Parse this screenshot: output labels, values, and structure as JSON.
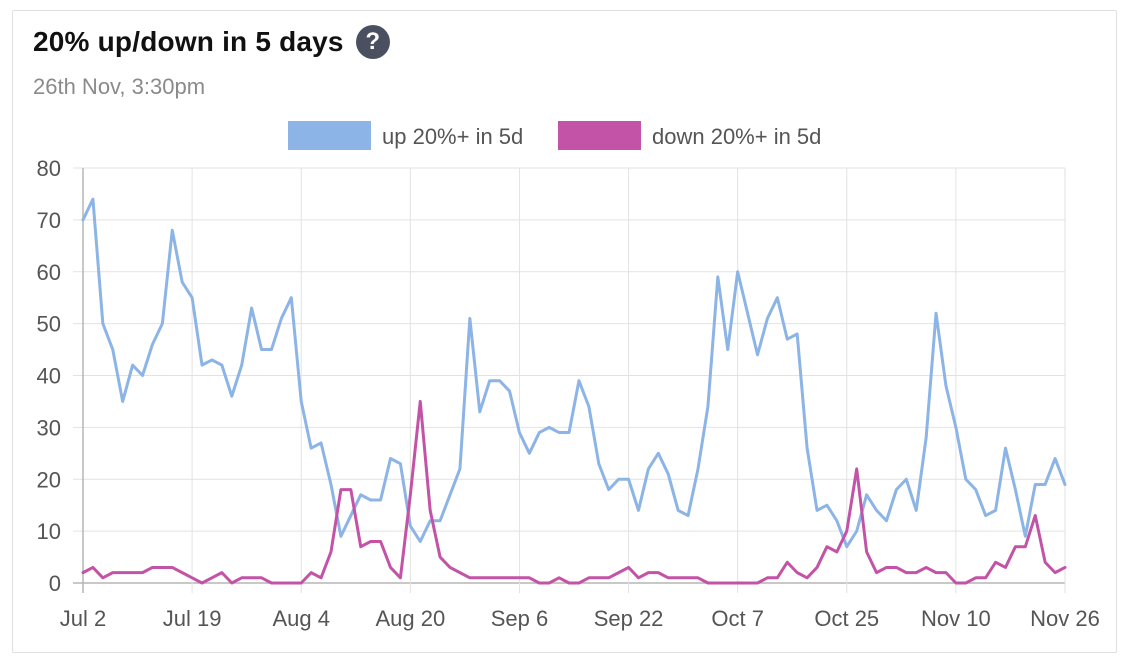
{
  "header": {
    "title": "20% up/down in 5 days",
    "subtitle": "26th Nov, 3:30pm",
    "help_icon": "question-circle-icon"
  },
  "colors": {
    "up": "#8cb4e6",
    "down": "#c353a6",
    "grid": "#e2e2e2",
    "axis": "#b5b5b5"
  },
  "chart_data": {
    "type": "line",
    "title": "20% up/down in 5 days",
    "xlabel": "",
    "ylabel": "",
    "ylim": [
      0,
      80
    ],
    "yticks": [
      0,
      10,
      20,
      30,
      40,
      50,
      60,
      70,
      80
    ],
    "xtick_labels": [
      "Jul 2",
      "Jul 19",
      "Aug 4",
      "Aug 20",
      "Sep 6",
      "Sep 22",
      "Oct 7",
      "Oct 25",
      "Nov 10",
      "Nov 26"
    ],
    "xtick_index": [
      0,
      11,
      22,
      33,
      44,
      55,
      66,
      77,
      88,
      99
    ],
    "grid": true,
    "legend_position": "top-center",
    "series": [
      {
        "name": "up 20%+ in 5d",
        "values": [
          70,
          74,
          50,
          45,
          35,
          42,
          40,
          46,
          50,
          68,
          58,
          55,
          42,
          43,
          42,
          36,
          42,
          53,
          45,
          45,
          51,
          55,
          35,
          26,
          27,
          19,
          9,
          13,
          17,
          16,
          16,
          24,
          23,
          11,
          8,
          12,
          12,
          17,
          22,
          51,
          33,
          39,
          39,
          37,
          29,
          25,
          29,
          30,
          29,
          29,
          39,
          34,
          23,
          18,
          20,
          20,
          14,
          22,
          25,
          21,
          14,
          13,
          22,
          34,
          59,
          45,
          60,
          52,
          44,
          51,
          55,
          47,
          48,
          26,
          14,
          15,
          12,
          7,
          10,
          17,
          14,
          12,
          18,
          20,
          14,
          28,
          52,
          38,
          30,
          20,
          18,
          13,
          14,
          26,
          18,
          9,
          19,
          19,
          24,
          19
        ]
      },
      {
        "name": "down 20%+ in 5d",
        "values": [
          2,
          3,
          1,
          2,
          2,
          2,
          2,
          3,
          3,
          3,
          2,
          1,
          0,
          1,
          2,
          0,
          1,
          1,
          1,
          0,
          0,
          0,
          0,
          2,
          1,
          6,
          18,
          18,
          7,
          8,
          8,
          3,
          1,
          17,
          35,
          14,
          5,
          3,
          2,
          1,
          1,
          1,
          1,
          1,
          1,
          1,
          0,
          0,
          1,
          0,
          0,
          1,
          1,
          1,
          2,
          3,
          1,
          2,
          2,
          1,
          1,
          1,
          1,
          0,
          0,
          0,
          0,
          0,
          0,
          1,
          1,
          4,
          2,
          1,
          3,
          7,
          6,
          10,
          22,
          6,
          2,
          3,
          3,
          2,
          2,
          3,
          2,
          2,
          0,
          0,
          1,
          1,
          4,
          3,
          7,
          7,
          13,
          4,
          2,
          3
        ]
      }
    ]
  }
}
